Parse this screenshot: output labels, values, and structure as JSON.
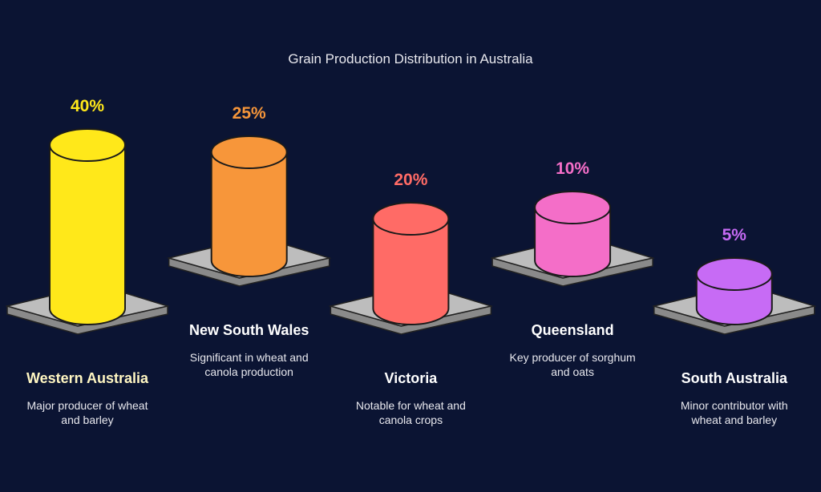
{
  "chart_data": {
    "type": "cylinder-bar",
    "title": "Grain Production Distribution in Australia",
    "categories": [
      "Western Australia",
      "New South Wales",
      "Victoria",
      "Queensland",
      "South Australia"
    ],
    "descriptions": [
      "Major producer of wheat and barley",
      "Significant in wheat and canola production",
      "Notable for wheat and canola crops",
      "Key producer of sorghum and oats",
      "Minor contributor with wheat and barley"
    ],
    "values": [
      40,
      25,
      20,
      10,
      5
    ],
    "value_labels": [
      "40%",
      "25%",
      "20%",
      "10%",
      "5%"
    ],
    "colors": [
      "#ffe81a",
      "#f7963a",
      "#ff6b66",
      "#f46ec8",
      "#c76bf5"
    ]
  }
}
